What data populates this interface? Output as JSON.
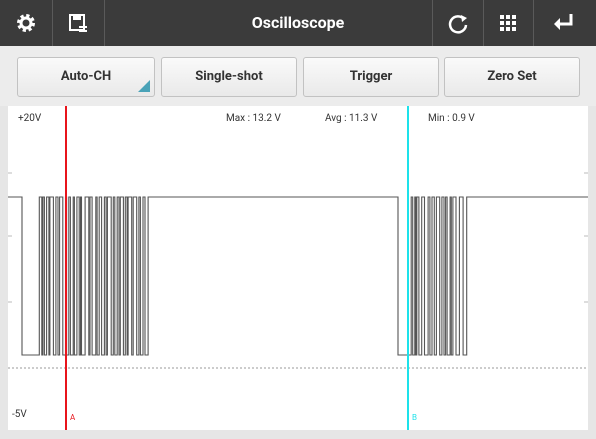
{
  "toolbar": {
    "title": "Oscilloscope"
  },
  "buttons": [
    "Auto-CH",
    "Single-shot",
    "Trigger",
    "Zero Set"
  ],
  "scope": {
    "top_label": "+20V",
    "bottom_label": "-5V",
    "max": "Max : 13.2 V",
    "avg": "Avg : 11.3 V",
    "min": "Min : 0.9 V",
    "cursors": [
      {
        "label": "A",
        "color": "#e8141b"
      },
      {
        "label": "B",
        "color": "#1de2ea"
      }
    ]
  }
}
